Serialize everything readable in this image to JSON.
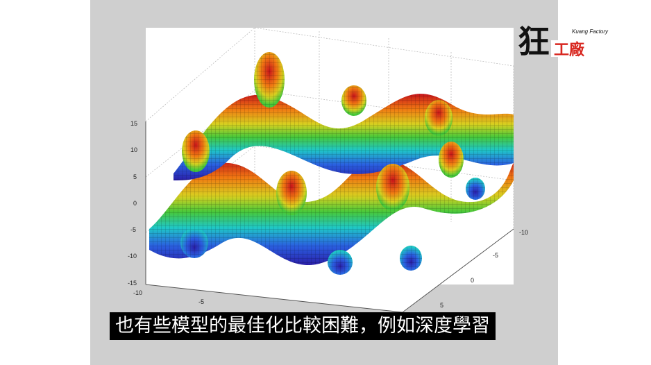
{
  "subtitle": "也有些模型的最佳化比較困難，例如深度學習",
  "logo": {
    "main_char": "狂",
    "sub_chars": "工廠",
    "small_text": "Kuang Factory"
  },
  "axes": {
    "z_ticks": [
      "15",
      "10",
      "5",
      "0",
      "-5",
      "-10",
      "-15"
    ],
    "x_ticks": [
      "-10",
      "-5"
    ],
    "y_ticks": [
      "-10",
      "-5",
      "0",
      "5"
    ]
  },
  "colors": {
    "background_panel": "#cfcfcf",
    "subtitle_bg": "#000000",
    "subtitle_text": "#ffffff",
    "logo_red": "#d8261f"
  },
  "icons": {
    "logo": "kuang-factory-logo-icon",
    "surface": "3d-surface-plot-image"
  }
}
